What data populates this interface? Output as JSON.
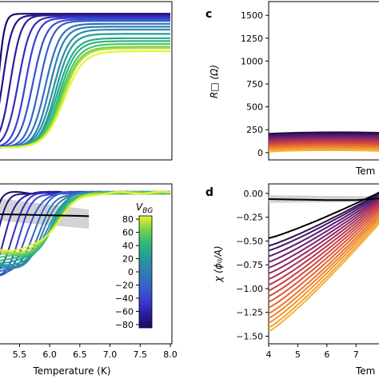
{
  "chart_data": [
    {
      "panel": "",
      "type": "line",
      "title": "",
      "xlabel": "",
      "ylabel": "",
      "xlim": [
        5.15,
        8.0
      ],
      "ylim": [
        0.0,
        1.0
      ],
      "note_values": "normalized resistance curves, one per gate voltage; values are relative levels (0 = bottom of visible axis, 1 = top)",
      "series": [
        {
          "name": "V_BG=-80",
          "onset": 5.15,
          "width": 0.05,
          "high": 0.96
        },
        {
          "name": "V_BG=-70",
          "onset": 5.22,
          "width": 0.08,
          "high": 0.95
        },
        {
          "name": "V_BG=-60",
          "onset": 5.35,
          "width": 0.09,
          "high": 0.95
        },
        {
          "name": "V_BG=-50",
          "onset": 5.48,
          "width": 0.1,
          "high": 0.94
        },
        {
          "name": "V_BG=-40",
          "onset": 5.6,
          "width": 0.1,
          "high": 0.93
        },
        {
          "name": "V_BG=-30",
          "onset": 5.72,
          "width": 0.11,
          "high": 0.92
        },
        {
          "name": "V_BG=-20",
          "onset": 5.83,
          "width": 0.11,
          "high": 0.91
        },
        {
          "name": "V_BG=-10",
          "onset": 5.93,
          "width": 0.12,
          "high": 0.89
        },
        {
          "name": "V_BG=0",
          "onset": 6.0,
          "width": 0.12,
          "high": 0.87
        },
        {
          "name": "V_BG=10",
          "onset": 6.06,
          "width": 0.13,
          "high": 0.85
        },
        {
          "name": "V_BG=20",
          "onset": 6.1,
          "width": 0.13,
          "high": 0.82
        },
        {
          "name": "V_BG=30",
          "onset": 6.13,
          "width": 0.14,
          "high": 0.79
        },
        {
          "name": "V_BG=40",
          "onset": 6.16,
          "width": 0.14,
          "high": 0.77
        },
        {
          "name": "V_BG=50",
          "onset": 6.18,
          "width": 0.15,
          "high": 0.75
        },
        {
          "name": "V_BG=60",
          "onset": 6.2,
          "width": 0.15,
          "high": 0.73
        },
        {
          "name": "V_BG=70",
          "onset": 6.22,
          "width": 0.15,
          "high": 0.72
        },
        {
          "name": "V_BG=80",
          "onset": 6.24,
          "width": 0.16,
          "high": 0.7
        }
      ]
    },
    {
      "panel": "c",
      "type": "line",
      "title": "",
      "xlabel": "Tem",
      "ylabel": "R□ (Ω)",
      "yticks": [
        "0",
        "250",
        "500",
        "750",
        "1000",
        "1250",
        "1500"
      ],
      "ylim": [
        -80,
        1650
      ],
      "series_note": "17 colored curves between 0 and ~210 Ω (inferno colormap)",
      "values_at_left": [
        205,
        192,
        180,
        168,
        156,
        144,
        132,
        120,
        108,
        96,
        84,
        72,
        60,
        48,
        36,
        24,
        12
      ]
    },
    {
      "panel": "",
      "type": "line",
      "xlabel": "Temperature (K)",
      "xticks": [
        "5.5",
        "6.0",
        "6.5",
        "7.0",
        "7.5",
        "8.0"
      ],
      "xlim": [
        5.15,
        8.0
      ],
      "ylim": [
        0,
        1
      ],
      "colorbar": {
        "label": "V_BG",
        "ticks": [
          "80",
          "60",
          "40",
          "20",
          "0",
          "−20",
          "−40",
          "−60",
          "−80"
        ],
        "range": [
          -85,
          85
        ]
      },
      "black_line": {
        "x": [
          5.15,
          5.5,
          6.0,
          6.5,
          6.65
        ],
        "y": [
          0.6,
          0.595,
          0.585,
          0.575,
          0.57
        ]
      }
    },
    {
      "panel": "d",
      "type": "line",
      "xlabel": "Tem",
      "ylabel": "χ (ϕ₀/A)",
      "xticks": [
        "4",
        "5",
        "6",
        "7"
      ],
      "yticks": [
        "0.00",
        "−0.25",
        "−0.50",
        "−0.75",
        "−1.00",
        "−1.25",
        "−1.50"
      ],
      "xlim": [
        4.0,
        7.9
      ],
      "ylim": [
        -1.58,
        0.1
      ],
      "black_line": {
        "x": [
          4.0,
          5.0,
          6.0,
          7.0,
          7.9
        ],
        "y": [
          -0.06,
          -0.065,
          -0.07,
          -0.07,
          -0.05
        ]
      },
      "series_start_values": [
        -0.47,
        -0.55,
        -0.6,
        -0.66,
        -0.72,
        -0.78,
        -0.84,
        -0.9,
        -0.96,
        -1.02,
        -1.08,
        -1.14,
        -1.2,
        -1.26,
        -1.31,
        -1.36,
        -1.41,
        -1.45
      ]
    }
  ],
  "labels": {
    "panel_c": "c",
    "panel_d": "d",
    "ylabel_c": "R□ (Ω)",
    "ylabel_d": "χ (ϕ₀/A)",
    "xlabel_left": "Temperature (K)",
    "xlabel_right_c": "Tem",
    "xlabel_right_d": "Tem",
    "cbar_label": "V",
    "cbar_sub": "BG"
  }
}
